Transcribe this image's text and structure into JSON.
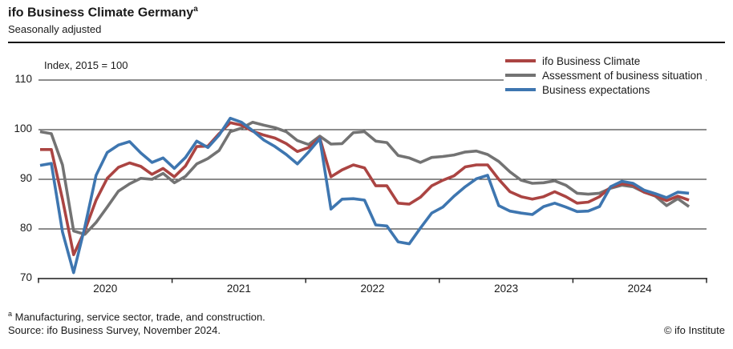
{
  "header": {
    "title": "ifo Business Climate Germany",
    "title_superscript": "a",
    "subtitle": "Seasonally adjusted"
  },
  "footer": {
    "footnote_marker": "a",
    "footnote": " Manufacturing, service sector, trade, and construction.",
    "source": "Source: ifo Business Survey, November 2024.",
    "copyright": "© ifo Institute"
  },
  "chart_data": {
    "type": "line",
    "title": "ifo Business Climate Germany (seasonally adjusted)",
    "axis_title": "Index, 2015 = 100",
    "ylim": [
      70,
      112
    ],
    "y_ticks": [
      110,
      100,
      90,
      80,
      70
    ],
    "x_tick_labels": [
      "2020",
      "2021",
      "2022",
      "2023",
      "2024"
    ],
    "grid": "horizontal",
    "legend_position": "top-right",
    "x_unit": "month",
    "x": [
      "2020-01",
      "2020-02",
      "2020-03",
      "2020-04",
      "2020-05",
      "2020-06",
      "2020-07",
      "2020-08",
      "2020-09",
      "2020-10",
      "2020-11",
      "2020-12",
      "2021-01",
      "2021-02",
      "2021-03",
      "2021-04",
      "2021-05",
      "2021-06",
      "2021-07",
      "2021-08",
      "2021-09",
      "2021-10",
      "2021-11",
      "2021-12",
      "2022-01",
      "2022-02",
      "2022-03",
      "2022-04",
      "2022-05",
      "2022-06",
      "2022-07",
      "2022-08",
      "2022-09",
      "2022-10",
      "2022-11",
      "2022-12",
      "2023-01",
      "2023-02",
      "2023-03",
      "2023-04",
      "2023-05",
      "2023-06",
      "2023-07",
      "2023-08",
      "2023-09",
      "2023-10",
      "2023-11",
      "2023-12",
      "2024-01",
      "2024-02",
      "2024-03",
      "2024-04",
      "2024-05",
      "2024-06",
      "2024-07",
      "2024-08",
      "2024-09",
      "2024-10",
      "2024-11"
    ],
    "series": [
      {
        "name": "ifo Business Climate",
        "color": "#ab4442",
        "values": [
          96.0,
          96.0,
          86.0,
          74.8,
          79.7,
          85.8,
          90.2,
          92.4,
          93.3,
          92.6,
          91.0,
          92.2,
          90.5,
          92.7,
          96.6,
          96.7,
          99.2,
          101.4,
          100.9,
          99.7,
          98.9,
          98.3,
          97.2,
          95.6,
          96.4,
          98.3,
          90.5,
          91.9,
          92.9,
          92.3,
          88.7,
          88.7,
          85.2,
          85.0,
          86.4,
          88.7,
          89.8,
          90.7,
          92.5,
          92.9,
          92.9,
          90.0,
          87.5,
          86.5,
          86.0,
          86.5,
          87.5,
          86.5,
          85.2,
          85.4,
          86.5,
          88.4,
          89.1,
          88.8,
          87.4,
          86.7,
          85.7,
          86.6,
          85.8
        ]
      },
      {
        "name": "Assessment of business situation",
        "color": "#737373",
        "values": [
          99.6,
          99.2,
          92.9,
          79.6,
          78.9,
          81.3,
          84.4,
          87.6,
          89.1,
          90.2,
          90.0,
          91.2,
          89.3,
          90.6,
          93.1,
          94.2,
          95.8,
          99.6,
          100.3,
          101.5,
          100.9,
          100.4,
          99.6,
          97.8,
          97.0,
          98.7,
          97.1,
          97.2,
          99.4,
          99.6,
          97.7,
          97.4,
          94.8,
          94.3,
          93.4,
          94.4,
          94.6,
          94.9,
          95.5,
          95.7,
          95.0,
          93.6,
          91.5,
          89.8,
          89.2,
          89.3,
          89.7,
          88.8,
          87.2,
          87.0,
          87.2,
          88.2,
          88.8,
          88.5,
          87.4,
          86.6,
          84.7,
          86.1,
          84.5
        ]
      },
      {
        "name": "Business expectations",
        "color": "#3e76b0",
        "values": [
          92.8,
          93.2,
          79.4,
          71.2,
          80.4,
          90.8,
          95.4,
          96.9,
          97.6,
          95.3,
          93.4,
          94.3,
          92.2,
          94.4,
          97.7,
          96.4,
          98.9,
          102.3,
          101.5,
          99.8,
          97.9,
          96.6,
          95.0,
          93.1,
          95.5,
          98.2,
          84.0,
          86.0,
          86.1,
          85.8,
          80.8,
          80.6,
          77.4,
          77.0,
          80.2,
          83.2,
          84.4,
          86.6,
          88.5,
          90.1,
          90.8,
          84.7,
          83.6,
          83.2,
          82.9,
          84.5,
          85.2,
          84.4,
          83.5,
          83.6,
          84.5,
          88.5,
          89.6,
          89.2,
          87.8,
          87.1,
          86.3,
          87.4,
          87.2
        ]
      }
    ]
  }
}
